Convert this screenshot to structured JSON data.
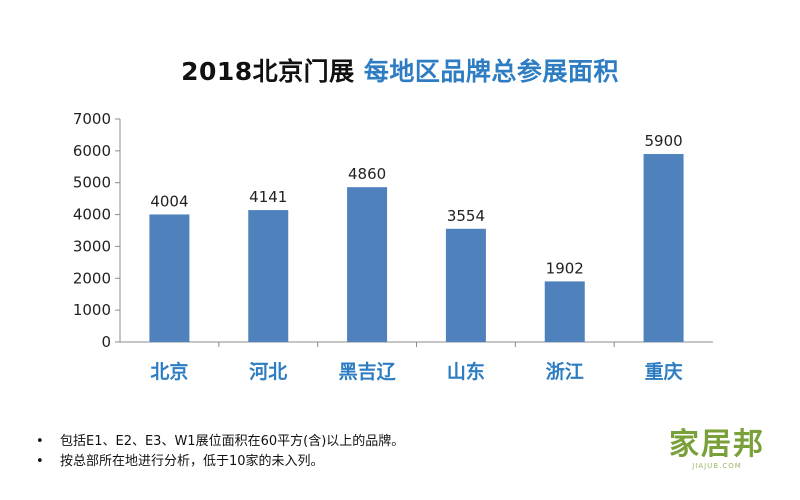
{
  "title": {
    "part1": "2018北京门展",
    "part2": "每地区品牌总参展面积"
  },
  "chart_data": {
    "type": "bar",
    "categories": [
      "北京",
      "河北",
      "黑吉辽",
      "山东",
      "浙江",
      "重庆"
    ],
    "values": [
      4004,
      4141,
      4860,
      3554,
      1902,
      5900
    ],
    "yticks": [
      0,
      1000,
      2000,
      3000,
      4000,
      5000,
      6000,
      7000
    ],
    "ylim": [
      0,
      7000
    ],
    "xlabel": "",
    "ylabel": "",
    "grid": false,
    "bar_color": "#4f81bd",
    "category_color": "#2e7dc2"
  },
  "notes": [
    "包括E1、E2、E3、W1展位面积在60平方(含)以上的品牌。",
    "按总部所在地进行分析，低于10家的未入列。"
  ],
  "notes_bullet": "•",
  "logo": {
    "text": "家居邦",
    "subtext": "JIAJUB.COM"
  }
}
